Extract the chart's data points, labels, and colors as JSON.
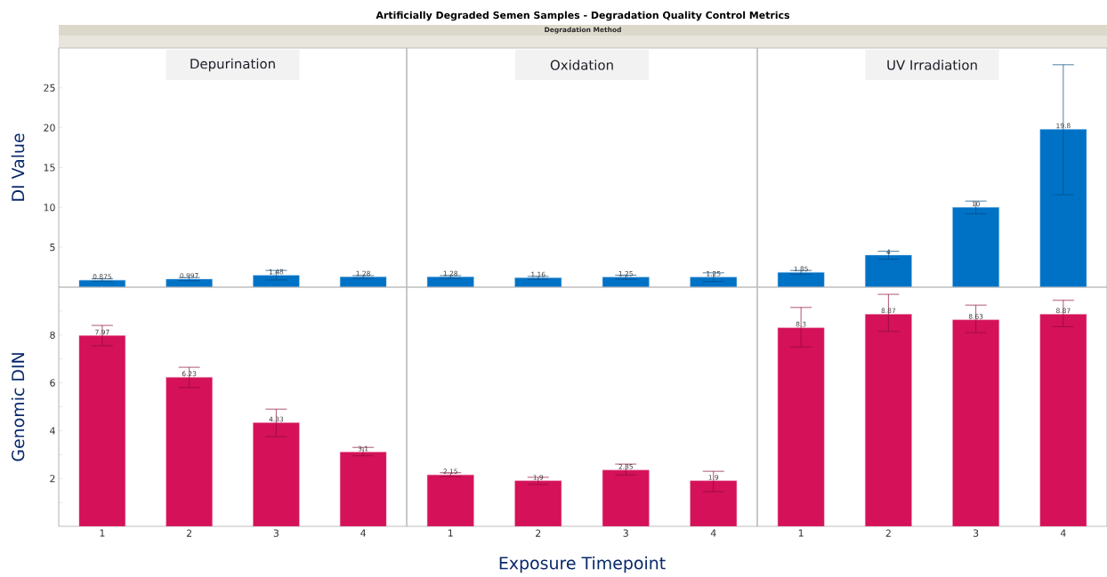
{
  "chart_data": [
    {
      "type": "bar",
      "title": "Depurination",
      "ylabel": "DI Value",
      "annotations": [
        "Artificially Degraded Semen Samples - Degradation Quality Control Metrics",
        "Degradation Method"
      ],
      "categories": [
        "1",
        "2",
        "3",
        "4"
      ],
      "values": [
        0.875,
        0.997,
        1.48,
        1.28
      ],
      "errors": [
        [
          0.73,
          1.05
        ],
        [
          0.8,
          1.2
        ],
        [
          0.9,
          2.1
        ],
        [
          1.1,
          1.45
        ]
      ],
      "color": "#0072c6",
      "ylim": [
        0,
        30
      ],
      "yticks": [
        5,
        10,
        15,
        20,
        25
      ],
      "data_labels": true,
      "tick_labels": "y"
    },
    {
      "type": "bar",
      "title": "Oxidation",
      "categories": [
        "1",
        "2",
        "3",
        "4"
      ],
      "values": [
        1.28,
        1.16,
        1.25,
        1.25
      ],
      "errors": [
        [
          1.1,
          1.45
        ],
        [
          0.97,
          1.35
        ],
        [
          1.0,
          1.5
        ],
        [
          0.7,
          1.8
        ]
      ],
      "color": "#0072c6",
      "ylim": [
        0,
        30
      ],
      "data_labels": true,
      "tick_labels": false
    },
    {
      "type": "bar",
      "title": "UV Irradiation",
      "categories": [
        "1",
        "2",
        "3",
        "4"
      ],
      "values": [
        1.85,
        4,
        10,
        19.8
      ],
      "errors": [
        [
          1.6,
          2.1
        ],
        [
          3.5,
          4.5
        ],
        [
          9.2,
          10.8
        ],
        [
          11.6,
          27.9
        ]
      ],
      "color": "#0072c6",
      "ylim": [
        0,
        30
      ],
      "data_labels": true,
      "tick_labels": false
    },
    {
      "type": "bar",
      "ylabel": "Genomic DIN",
      "categories": [
        "1",
        "2",
        "3",
        "4"
      ],
      "values": [
        7.97,
        6.23,
        4.33,
        3.1
      ],
      "errors": [
        [
          7.55,
          8.4
        ],
        [
          5.8,
          6.65
        ],
        [
          3.75,
          4.9
        ],
        [
          2.95,
          3.3
        ]
      ],
      "color": "#d41159",
      "ylim": [
        0,
        10
      ],
      "yticks": [
        {
          "value": 1,
          "label": null
        },
        2,
        {
          "value": 3,
          "label": null
        },
        4,
        {
          "value": 5,
          "label": null
        },
        6,
        {
          "value": 7,
          "label": null
        },
        8,
        {
          "value": 9,
          "label": null
        }
      ],
      "data_labels": true
    },
    {
      "type": "bar",
      "xlabel": "Exposure Timepoint",
      "categories": [
        "1",
        "2",
        "3",
        "4"
      ],
      "values": [
        2.15,
        1.9,
        2.35,
        1.9
      ],
      "errors": [
        [
          2.08,
          2.24
        ],
        [
          1.75,
          2.05
        ],
        [
          2.15,
          2.6
        ],
        [
          1.45,
          2.3
        ]
      ],
      "color": "#d41159",
      "ylim": [
        0,
        10
      ],
      "data_labels": true,
      "tick_labels": "x"
    },
    {
      "type": "bar",
      "categories": [
        "1",
        "2",
        "3",
        "4"
      ],
      "values": [
        8.3,
        8.87,
        8.63,
        8.87
      ],
      "errors": [
        [
          7.5,
          9.15
        ],
        [
          8.15,
          9.7
        ],
        [
          8.1,
          9.25
        ],
        [
          8.35,
          9.45
        ]
      ],
      "color": "#d41159",
      "ylim": [
        0,
        10
      ],
      "data_labels": true,
      "tick_labels": "x"
    }
  ]
}
